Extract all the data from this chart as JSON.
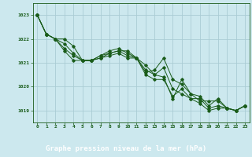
{
  "title": "Graphe pression niveau de la mer (hPa)",
  "bg_color": "#cce8ee",
  "plot_bg_color": "#cce8ee",
  "grid_color": "#aaccd4",
  "line_color": "#1a5c1a",
  "label_bg_color": "#2d6e2d",
  "label_text_color": "#ffffff",
  "xlim": [
    -0.5,
    23.5
  ],
  "ylim": [
    1018.5,
    1023.5
  ],
  "yticks": [
    1019,
    1020,
    1021,
    1022,
    1023
  ],
  "xticks": [
    0,
    1,
    2,
    3,
    4,
    5,
    6,
    7,
    8,
    9,
    10,
    11,
    12,
    13,
    14,
    15,
    16,
    17,
    18,
    19,
    20,
    21,
    22,
    23
  ],
  "series": [
    [
      1023.0,
      1022.2,
      1022.0,
      1021.5,
      1021.1,
      1021.1,
      1021.1,
      1021.2,
      1021.3,
      1021.4,
      1021.2,
      1021.2,
      1020.5,
      1020.3,
      1020.3,
      1019.6,
      1019.9,
      1019.5,
      1019.3,
      1019.0,
      1019.1,
      1019.1,
      1019.0,
      1019.2
    ],
    [
      1023.0,
      1022.2,
      1022.0,
      1021.8,
      1021.4,
      1021.1,
      1021.1,
      1021.2,
      1021.4,
      1021.5,
      1021.5,
      1021.2,
      1020.6,
      1020.7,
      1021.2,
      1020.3,
      1020.1,
      1019.7,
      1019.4,
      1019.4,
      1019.4,
      1019.1,
      1019.0,
      1019.2
    ],
    [
      1023.0,
      1022.2,
      1022.0,
      1021.6,
      1021.3,
      1021.1,
      1021.1,
      1021.3,
      1021.5,
      1021.6,
      1021.4,
      1021.2,
      1020.7,
      1020.5,
      1020.8,
      1019.9,
      1019.7,
      1019.5,
      1019.5,
      1019.1,
      1019.2,
      1019.1,
      1019.0,
      1019.2
    ],
    [
      1023.0,
      1022.2,
      1022.0,
      1022.0,
      1021.7,
      1021.1,
      1021.1,
      1021.3,
      1021.4,
      1021.5,
      1021.3,
      1021.2,
      1020.9,
      1020.5,
      1020.4,
      1019.5,
      1020.3,
      1019.7,
      1019.6,
      1019.2,
      1019.5,
      1019.1,
      1019.0,
      1019.2
    ]
  ]
}
